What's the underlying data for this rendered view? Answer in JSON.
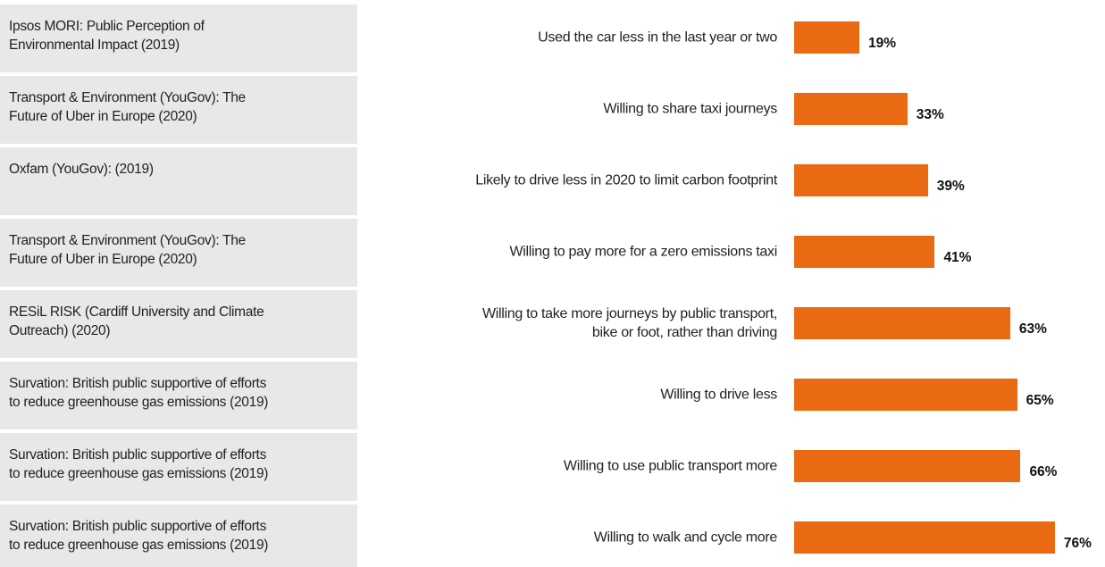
{
  "chart_data": {
    "type": "bar",
    "orientation": "horizontal",
    "color": "#e96a12",
    "sources": [
      "Ipsos MORI: Public Perception of\nEnvironmental Impact (2019)",
      "Transport & Environment (YouGov): The\nFuture of Uber in Europe (2020)",
      "Oxfam (YouGov): (2019)",
      "Transport & Environment (YouGov): The\nFuture of Uber in Europe (2020)",
      "RESiL RISK (Cardiff University and Climate\nOutreach) (2020)",
      "Survation: British public supportive of efforts\nto reduce greenhouse gas emissions (2019)",
      "Survation: British public supportive of efforts\nto reduce greenhouse gas emissions (2019)",
      "Survation: British public supportive of efforts\nto reduce greenhouse gas emissions (2019)"
    ],
    "categories": [
      "Used the car less in the last year or two",
      "Willing to share taxi journeys",
      "Likely to drive less in 2020 to limit carbon footprint",
      "Willing to pay more for a zero emissions taxi",
      "Willing to take more journeys by public transport,\nbike or foot, rather than driving",
      "Willing to drive less",
      "Willing to use public transport more",
      "Willing to walk and cycle more"
    ],
    "values": [
      19,
      33,
      39,
      41,
      63,
      65,
      66,
      76
    ],
    "value_labels": [
      "19%",
      "33%",
      "39%",
      "41%",
      "63%",
      "65%",
      "66%",
      "76%"
    ]
  }
}
